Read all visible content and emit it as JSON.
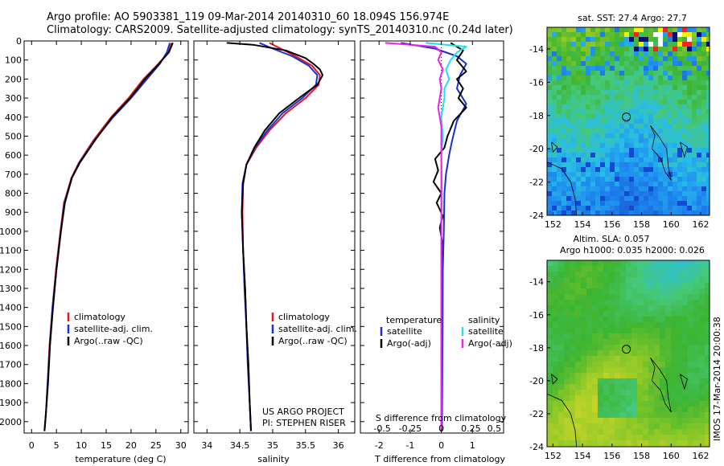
{
  "header": {
    "line1": "Argo profile: AO 5903381_119 09-Mar-2014 20140310_60 18.094S 156.974E",
    "line2": "Climatology: CARS2009. Satellite-adjusted climatology: synTS_20140310.nc (0.24d later)"
  },
  "side_stamp": "IMOS 17-Mar-2014 20:00:38",
  "colors": {
    "red": "#e8141e",
    "blue": "#1a2fd0",
    "black": "#000000",
    "cyan": "#20e0ea",
    "magenta": "#ee20ee"
  },
  "chart_data": [
    {
      "type": "line",
      "name": "temperature",
      "xlabel": "temperature (deg C)",
      "ylabel": "",
      "xlim": [
        -1.5,
        31.5
      ],
      "ylim": [
        2060,
        0
      ],
      "xticks": [
        0,
        5,
        10,
        15,
        20,
        25,
        30
      ],
      "yticks": [
        0,
        100,
        200,
        300,
        400,
        500,
        600,
        700,
        800,
        900,
        1000,
        1100,
        1200,
        1300,
        1400,
        1500,
        1600,
        1700,
        1800,
        1900,
        2000
      ],
      "legend": [
        "climatology",
        "satellite-adj. clim.",
        "Argo(..raw -QC)"
      ],
      "series": [
        {
          "name": "climatology",
          "color": "red",
          "points": [
            [
              28.2,
              10
            ],
            [
              27.5,
              60
            ],
            [
              25.5,
              120
            ],
            [
              22.5,
              200
            ],
            [
              19.5,
              300
            ],
            [
              16.0,
              400
            ],
            [
              12.5,
              520
            ],
            [
              9.5,
              640
            ],
            [
              8.0,
              720
            ],
            [
              6.5,
              850
            ],
            [
              5.8,
              1000
            ],
            [
              4.9,
              1200
            ],
            [
              4.2,
              1400
            ],
            [
              3.6,
              1600
            ],
            [
              3.2,
              1800
            ],
            [
              2.9,
              1950
            ],
            [
              2.6,
              2050
            ]
          ]
        },
        {
          "name": "satellite-adj. clim.",
          "color": "blue",
          "points": [
            [
              27.8,
              10
            ],
            [
              27.2,
              60
            ],
            [
              25.8,
              120
            ],
            [
              23.2,
              200
            ],
            [
              20.0,
              300
            ],
            [
              16.4,
              400
            ],
            [
              12.7,
              520
            ],
            [
              9.6,
              640
            ],
            [
              8.1,
              720
            ],
            [
              6.6,
              850
            ],
            [
              5.9,
              1000
            ],
            [
              5.0,
              1200
            ],
            [
              4.2,
              1400
            ],
            [
              3.7,
              1600
            ],
            [
              3.2,
              1800
            ],
            [
              2.9,
              1950
            ],
            [
              2.6,
              2050
            ]
          ]
        },
        {
          "name": "Argo(..raw -QC)",
          "color": "black",
          "points": [
            [
              28.4,
              10
            ],
            [
              27.6,
              60
            ],
            [
              25.6,
              120
            ],
            [
              22.8,
              200
            ],
            [
              19.8,
              300
            ],
            [
              16.2,
              400
            ],
            [
              12.8,
              520
            ],
            [
              9.7,
              640
            ],
            [
              8.1,
              720
            ],
            [
              6.7,
              850
            ],
            [
              5.9,
              1000
            ],
            [
              5.0,
              1200
            ],
            [
              4.3,
              1400
            ],
            [
              3.7,
              1600
            ],
            [
              3.3,
              1800
            ],
            [
              2.9,
              1950
            ],
            [
              2.6,
              2050
            ]
          ]
        }
      ]
    },
    {
      "type": "line",
      "name": "salinity",
      "xlabel": "salinity",
      "xlim": [
        33.8,
        36.25
      ],
      "ylim": [
        2060,
        0
      ],
      "xticks": [
        34,
        34.5,
        35,
        35.5,
        36
      ],
      "legend": [
        "climatology",
        "satellite-adj. clim.",
        "Argo(..raw -QC)"
      ],
      "project_text": [
        "US ARGO PROJECT",
        "PI: STEPHEN RISER"
      ],
      "series": [
        {
          "name": "climatology",
          "color": "red",
          "points": [
            [
              34.95,
              10
            ],
            [
              35.12,
              40
            ],
            [
              35.35,
              80
            ],
            [
              35.6,
              130
            ],
            [
              35.72,
              180
            ],
            [
              35.7,
              230
            ],
            [
              35.5,
              300
            ],
            [
              35.2,
              380
            ],
            [
              34.95,
              470
            ],
            [
              34.75,
              560
            ],
            [
              34.6,
              650
            ],
            [
              34.55,
              750
            ],
            [
              34.54,
              900
            ],
            [
              34.55,
              1100
            ],
            [
              34.58,
              1300
            ],
            [
              34.6,
              1500
            ],
            [
              34.63,
              1700
            ],
            [
              34.65,
              1900
            ],
            [
              34.67,
              2050
            ]
          ]
        },
        {
          "name": "satellite-adj. clim.",
          "color": "blue",
          "points": [
            [
              34.8,
              10
            ],
            [
              35.0,
              40
            ],
            [
              35.3,
              80
            ],
            [
              35.55,
              130
            ],
            [
              35.68,
              180
            ],
            [
              35.66,
              230
            ],
            [
              35.45,
              300
            ],
            [
              35.15,
              380
            ],
            [
              34.92,
              470
            ],
            [
              34.73,
              560
            ],
            [
              34.6,
              650
            ],
            [
              34.54,
              750
            ],
            [
              34.53,
              900
            ],
            [
              34.55,
              1100
            ],
            [
              34.57,
              1300
            ],
            [
              34.6,
              1500
            ],
            [
              34.62,
              1700
            ],
            [
              34.65,
              1900
            ],
            [
              34.67,
              2050
            ]
          ]
        },
        {
          "name": "Argo(..raw -QC)",
          "color": "black",
          "points": [
            [
              34.3,
              10
            ],
            [
              34.7,
              20
            ],
            [
              35.2,
              50
            ],
            [
              35.5,
              90
            ],
            [
              35.62,
              120
            ],
            [
              35.72,
              150
            ],
            [
              35.76,
              180
            ],
            [
              35.68,
              230
            ],
            [
              35.4,
              300
            ],
            [
              35.1,
              380
            ],
            [
              34.88,
              470
            ],
            [
              34.72,
              560
            ],
            [
              34.6,
              650
            ],
            [
              34.55,
              750
            ],
            [
              34.53,
              900
            ],
            [
              34.55,
              1100
            ],
            [
              34.58,
              1300
            ],
            [
              34.6,
              1500
            ],
            [
              34.63,
              1700
            ],
            [
              34.65,
              1900
            ],
            [
              34.67,
              2050
            ]
          ]
        }
      ]
    },
    {
      "type": "line",
      "name": "difference",
      "xlabel": "T difference from climatology",
      "xlabel2": "S difference from climatology",
      "xlim": [
        -2.6,
        2.0
      ],
      "ylim": [
        2060,
        0
      ],
      "xticks": [
        -2,
        -1,
        0,
        1
      ],
      "xtick_labels": [
        "-2",
        "-1",
        "0",
        "1"
      ],
      "xticks2": [
        -0.5,
        -0.25,
        0,
        0.25,
        0.5
      ],
      "xtick2_positions": [
        -1.9,
        -1.0,
        0.0,
        0.95,
        1.7
      ],
      "legend": {
        "temperature": {
          "title": "temperature",
          "items": [
            "satellite",
            "Argo(-adj)"
          ]
        },
        "salinity": {
          "title": "salinity",
          "items": [
            "satellite",
            "Argo(-adj)"
          ]
        }
      },
      "series": [
        {
          "name": "temperature satellite",
          "color": "blue",
          "points": [
            [
              -1.3,
              10
            ],
            [
              -0.2,
              40
            ],
            [
              0.5,
              80
            ],
            [
              0.8,
              120
            ],
            [
              0.6,
              180
            ],
            [
              0.5,
              250
            ],
            [
              0.8,
              330
            ],
            [
              0.5,
              420
            ],
            [
              0.35,
              520
            ],
            [
              0.25,
              600
            ],
            [
              0.15,
              700
            ],
            [
              0.1,
              800
            ],
            [
              0.08,
              1000
            ],
            [
              0.05,
              1200
            ],
            [
              0.04,
              1500
            ],
            [
              0.03,
              1800
            ],
            [
              0.02,
              2050
            ]
          ]
        },
        {
          "name": "temperature Argo(-adj)",
          "color": "black",
          "points": [
            [
              0.3,
              10
            ],
            [
              0.7,
              50
            ],
            [
              0.5,
              100
            ],
            [
              0.8,
              160
            ],
            [
              0.5,
              200
            ],
            [
              0.7,
              250
            ],
            [
              0.55,
              300
            ],
            [
              0.8,
              350
            ],
            [
              0.4,
              420
            ],
            [
              0.2,
              500
            ],
            [
              0.1,
              560
            ],
            [
              -0.2,
              620
            ],
            [
              -0.1,
              680
            ],
            [
              -0.25,
              740
            ],
            [
              0.0,
              800
            ],
            [
              -0.15,
              850
            ],
            [
              0.05,
              920
            ],
            [
              -0.05,
              980
            ],
            [
              0.02,
              1050
            ],
            [
              0.0,
              1200
            ],
            [
              0.0,
              1500
            ],
            [
              0.0,
              1800
            ],
            [
              0.0,
              2050
            ]
          ]
        },
        {
          "name": "salinity satellite",
          "color": "cyan",
          "points": [
            [
              -0.5,
              10
            ],
            [
              0.8,
              30
            ],
            [
              0.5,
              60
            ],
            [
              0.3,
              100
            ],
            [
              0.15,
              150
            ],
            [
              0.25,
              200
            ],
            [
              0.1,
              250
            ],
            [
              0.1,
              300
            ],
            [
              0.0,
              400
            ],
            [
              0.05,
              500
            ],
            [
              0.0,
              600
            ],
            [
              0.02,
              800
            ],
            [
              0.0,
              1000
            ],
            [
              0.0,
              1500
            ],
            [
              0.0,
              2050
            ]
          ]
        },
        {
          "name": "salinity Argo(-adj)",
          "color": "magenta",
          "points": [
            [
              -1.8,
              10
            ],
            [
              -0.2,
              30
            ],
            [
              0.0,
              60
            ],
            [
              -0.1,
              100
            ],
            [
              0.05,
              150
            ],
            [
              -0.05,
              200
            ],
            [
              0.0,
              250
            ],
            [
              -0.1,
              350
            ],
            [
              0.0,
              450
            ],
            [
              0.0,
              600
            ],
            [
              0.0,
              800
            ],
            [
              0.0,
              1000
            ],
            [
              0.0,
              1500
            ],
            [
              0.0,
              2050
            ]
          ]
        }
      ]
    },
    {
      "type": "heatmap",
      "name": "SST map",
      "title": "sat. SST: 27.4  Argo: 27.7",
      "xlim": [
        151.6,
        162.6
      ],
      "ylim": [
        -24.0,
        -12.7
      ],
      "xticks": [
        152,
        154,
        156,
        158,
        160,
        162
      ],
      "yticks": [
        -14,
        -16,
        -18,
        -20,
        -22,
        -24
      ],
      "argo_position": [
        156.97,
        -18.09
      ]
    },
    {
      "type": "heatmap",
      "name": "SLA map",
      "title": "Altim. SLA: 0.057",
      "subtitle": "Argo h1000: 0.035 h2000: 0.026",
      "xlim": [
        151.6,
        162.6
      ],
      "ylim": [
        -24.0,
        -12.7
      ],
      "xticks": [
        152,
        154,
        156,
        158,
        160,
        162
      ],
      "yticks": [
        -14,
        -16,
        -18,
        -20,
        -22,
        -24
      ],
      "argo_position": [
        156.97,
        -18.09
      ]
    }
  ]
}
